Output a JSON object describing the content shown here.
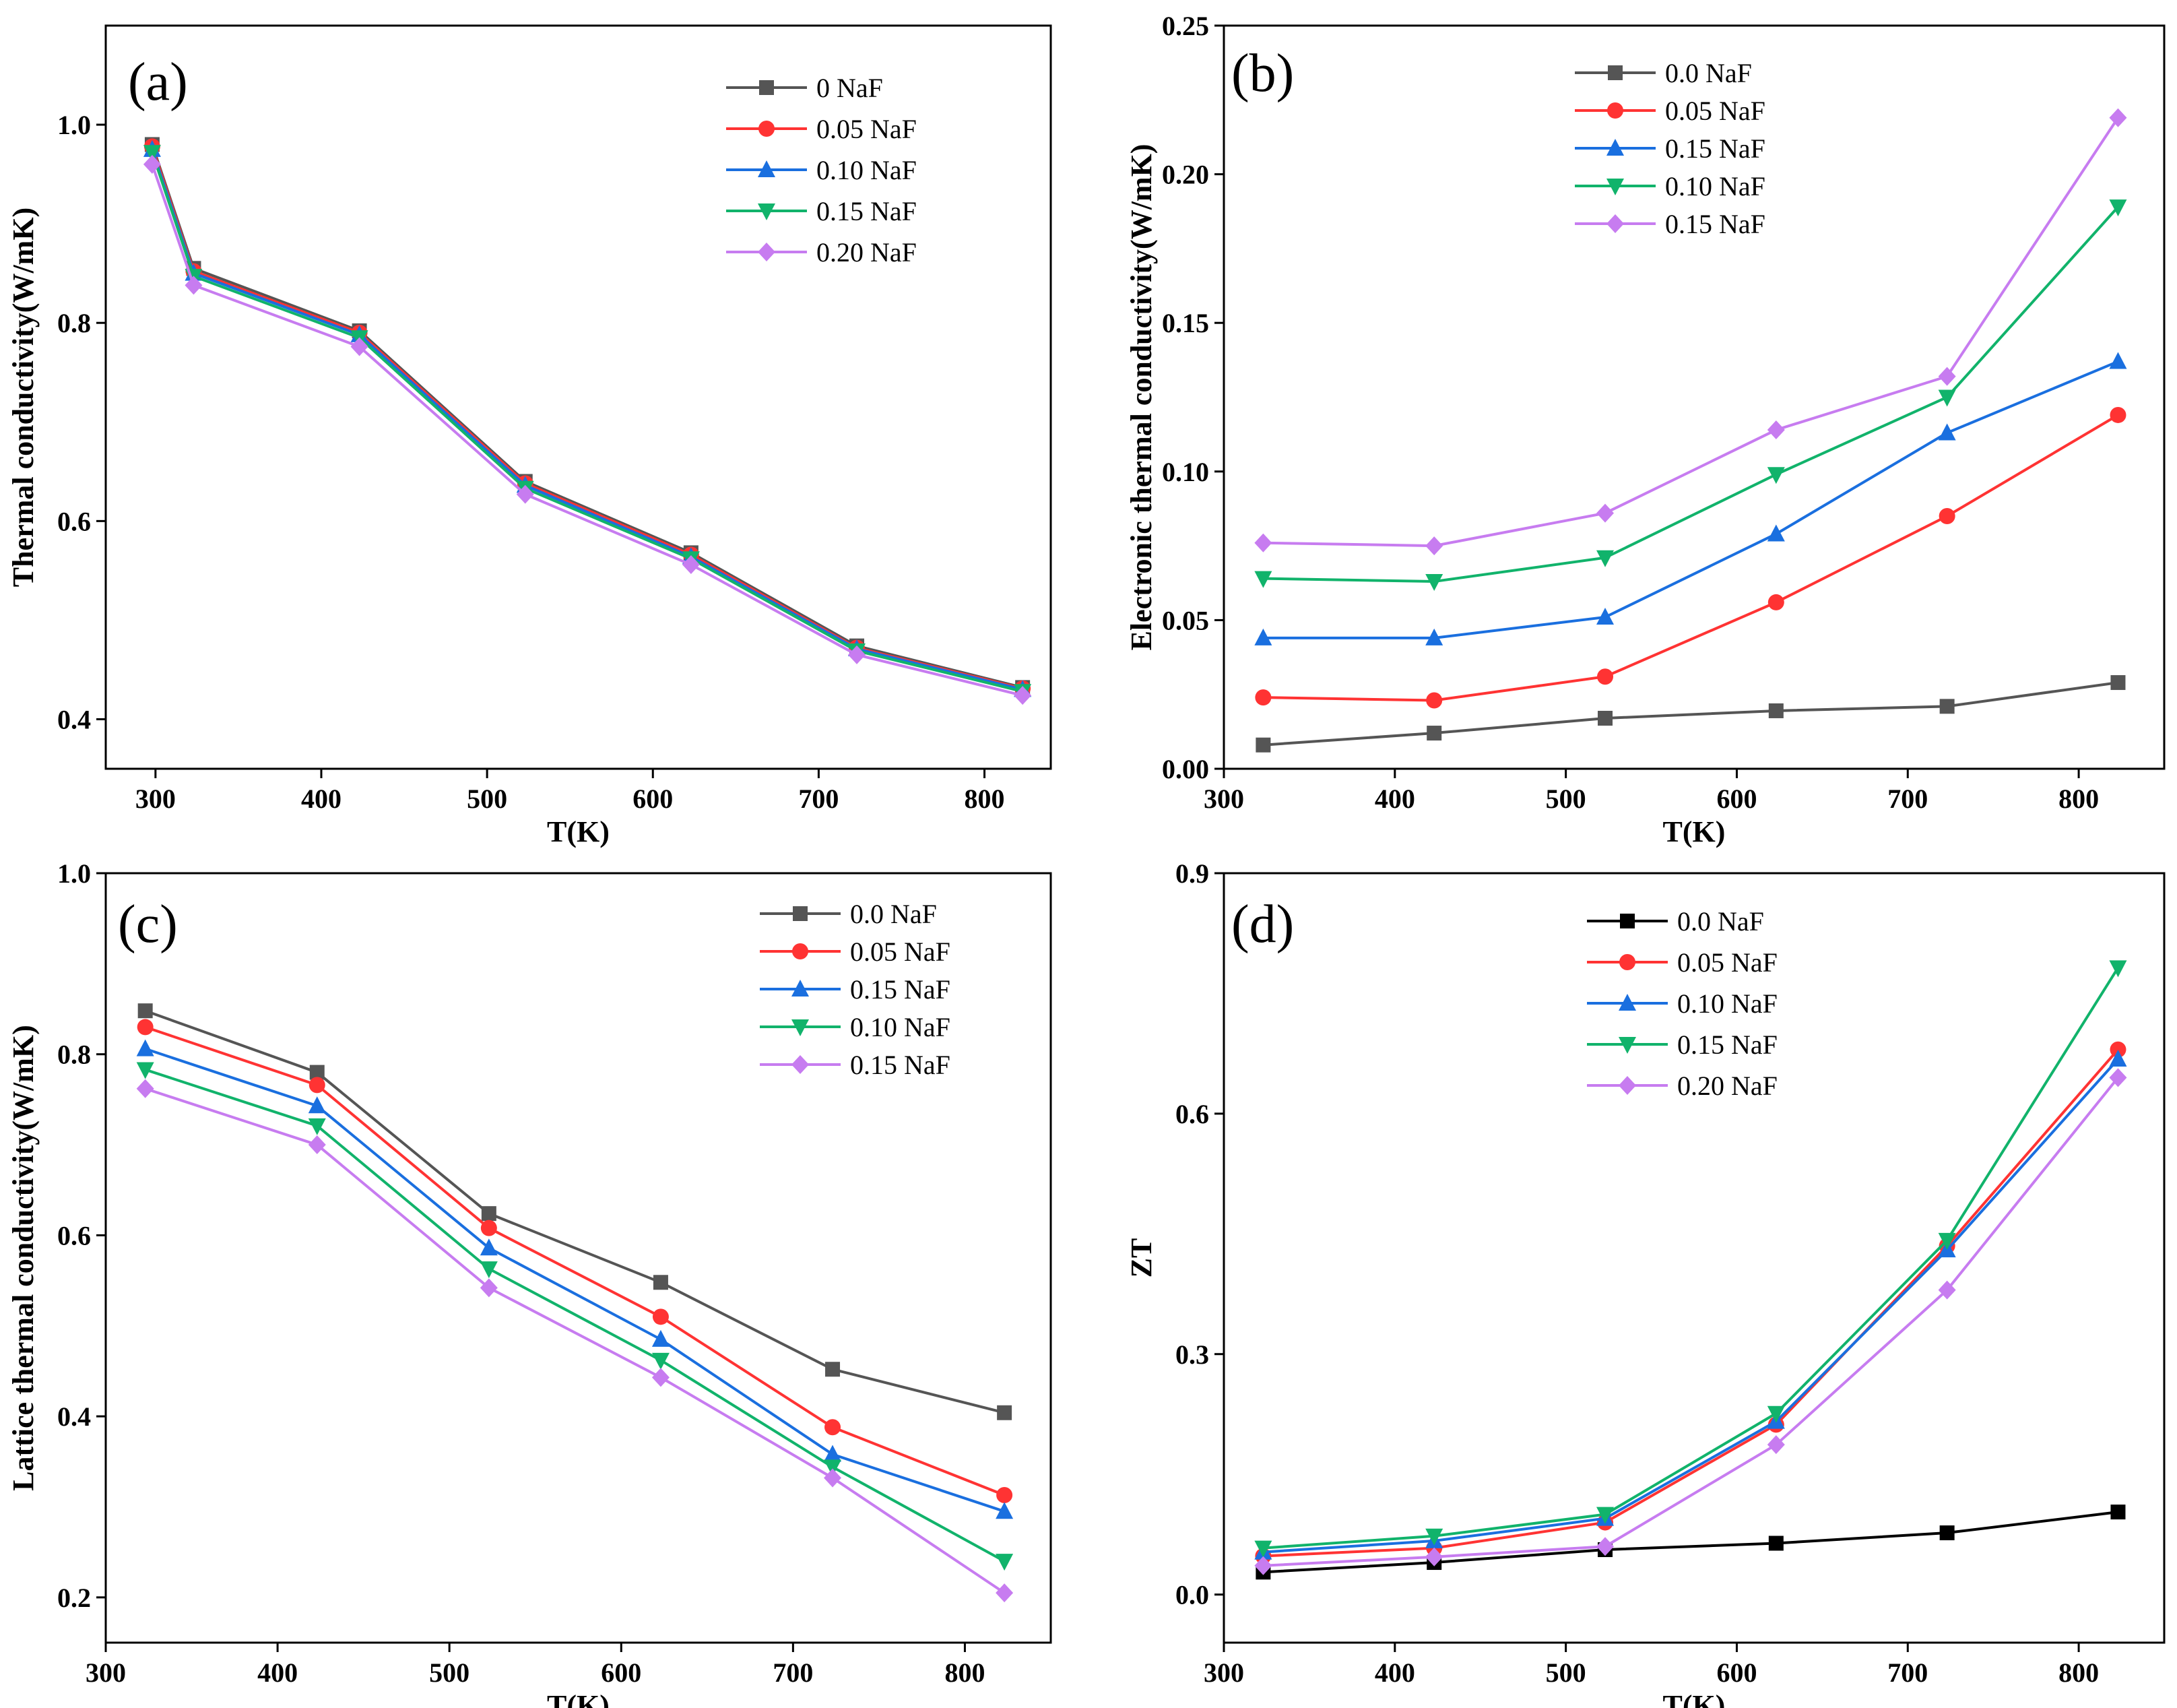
{
  "figure_title": "",
  "chart_data": [
    {
      "id": "a",
      "type": "line",
      "panel_label": "(a)",
      "xlabel": "T(K)",
      "ylabel": "Thermal conductivity(W/mK)",
      "xlim": [
        270,
        840
      ],
      "ylim": [
        0.35,
        1.1
      ],
      "xticks": [
        300,
        400,
        500,
        600,
        700,
        800
      ],
      "xtick_labels": [
        "300",
        "400",
        "500",
        "600",
        "700",
        "800"
      ],
      "yticks": [
        0.4,
        0.6,
        0.8,
        1.0
      ],
      "ytick_labels": [
        "0.4",
        "0.6",
        "0.8",
        "1.0"
      ],
      "legend_position": "top-right",
      "series": [
        {
          "name": "0 NaF",
          "color": "#555555",
          "marker": "square",
          "x": [
            298,
            323,
            423,
            523,
            623,
            723,
            823
          ],
          "y": [
            0.98,
            0.855,
            0.792,
            0.64,
            0.568,
            0.474,
            0.432
          ]
        },
        {
          "name": "0.05 NaF",
          "color": "#ff3333",
          "marker": "circle",
          "x": [
            298,
            323,
            423,
            523,
            623,
            723,
            823
          ],
          "y": [
            0.978,
            0.852,
            0.79,
            0.638,
            0.566,
            0.472,
            0.431
          ]
        },
        {
          "name": "0.10 NaF",
          "color": "#1a6fdf",
          "marker": "triangle-up",
          "x": [
            298,
            323,
            423,
            523,
            623,
            723,
            823
          ],
          "y": [
            0.975,
            0.85,
            0.788,
            0.636,
            0.564,
            0.471,
            0.43
          ]
        },
        {
          "name": "0.15 NaF",
          "color": "#11b36b",
          "marker": "triangle-down",
          "x": [
            298,
            323,
            423,
            523,
            623,
            723,
            823
          ],
          "y": [
            0.972,
            0.847,
            0.785,
            0.633,
            0.562,
            0.469,
            0.428
          ]
        },
        {
          "name": "0.20 NaF",
          "color": "#c77cf0",
          "marker": "diamond",
          "x": [
            298,
            323,
            423,
            523,
            623,
            723,
            823
          ],
          "y": [
            0.96,
            0.838,
            0.776,
            0.627,
            0.556,
            0.465,
            0.424
          ]
        }
      ]
    },
    {
      "id": "b",
      "type": "line",
      "panel_label": "(b)",
      "xlabel": "T(K)",
      "ylabel": "Electronic thermal conductivity(W/mK)",
      "xlim": [
        300,
        850
      ],
      "ylim": [
        0,
        0.25
      ],
      "xticks": [
        300,
        400,
        500,
        600,
        700,
        800
      ],
      "xtick_labels": [
        "300",
        "400",
        "500",
        "600",
        "700",
        "800"
      ],
      "yticks": [
        0,
        0.05,
        0.1,
        0.15,
        0.2,
        0.25
      ],
      "ytick_labels": [
        "0.00",
        "0.05",
        "0.10",
        "0.15",
        "0.20",
        "0.25"
      ],
      "legend_position": "top-center",
      "series": [
        {
          "name": "0.0 NaF",
          "color": "#555555",
          "marker": "square",
          "x": [
            323,
            423,
            523,
            623,
            723,
            823
          ],
          "y": [
            0.008,
            0.012,
            0.017,
            0.0195,
            0.021,
            0.029
          ]
        },
        {
          "name": "0.05 NaF",
          "color": "#ff3333",
          "marker": "circle",
          "x": [
            323,
            423,
            523,
            623,
            723,
            823
          ],
          "y": [
            0.024,
            0.023,
            0.031,
            0.056,
            0.085,
            0.119
          ]
        },
        {
          "name": "0.15 NaF",
          "color": "#1a6fdf",
          "marker": "triangle-up",
          "x": [
            323,
            423,
            523,
            623,
            723,
            823
          ],
          "y": [
            0.044,
            0.044,
            0.051,
            0.079,
            0.113,
            0.137
          ]
        },
        {
          "name": "0.10 NaF",
          "color": "#11b36b",
          "marker": "triangle-down",
          "x": [
            323,
            423,
            523,
            623,
            723,
            823
          ],
          "y": [
            0.064,
            0.063,
            0.071,
            0.099,
            0.125,
            0.189
          ]
        },
        {
          "name": "0.15 NaF",
          "color": "#c77cf0",
          "marker": "diamond",
          "x": [
            323,
            423,
            523,
            623,
            723,
            823
          ],
          "y": [
            0.076,
            0.075,
            0.086,
            0.114,
            0.132,
            0.219
          ]
        }
      ]
    },
    {
      "id": "c",
      "type": "line",
      "panel_label": "(c)",
      "xlabel": "T(K)",
      "ylabel": "Lattice thermal conductivity(W/mK)",
      "xlim": [
        300,
        850
      ],
      "ylim": [
        0.15,
        1.0
      ],
      "xticks": [
        300,
        400,
        500,
        600,
        700,
        800
      ],
      "xtick_labels": [
        "300",
        "400",
        "500",
        "600",
        "700",
        "800"
      ],
      "yticks": [
        0.2,
        0.4,
        0.6,
        0.8,
        1.0
      ],
      "ytick_labels": [
        "0.2",
        "0.4",
        "0.6",
        "0.8",
        "1.0"
      ],
      "legend_position": "top-right",
      "series": [
        {
          "name": "0.0 NaF",
          "color": "#555555",
          "marker": "square",
          "x": [
            323,
            423,
            523,
            623,
            723,
            823
          ],
          "y": [
            0.848,
            0.78,
            0.624,
            0.548,
            0.452,
            0.404
          ]
        },
        {
          "name": "0.05 NaF",
          "color": "#ff3333",
          "marker": "circle",
          "x": [
            323,
            423,
            523,
            623,
            723,
            823
          ],
          "y": [
            0.83,
            0.766,
            0.608,
            0.51,
            0.388,
            0.313
          ]
        },
        {
          "name": "0.15 NaF",
          "color": "#1a6fdf",
          "marker": "triangle-up",
          "x": [
            323,
            423,
            523,
            623,
            723,
            823
          ],
          "y": [
            0.806,
            0.743,
            0.586,
            0.485,
            0.358,
            0.295
          ]
        },
        {
          "name": "0.10 NaF",
          "color": "#11b36b",
          "marker": "triangle-down",
          "x": [
            323,
            423,
            523,
            623,
            723,
            823
          ],
          "y": [
            0.783,
            0.721,
            0.563,
            0.462,
            0.344,
            0.24
          ]
        },
        {
          "name": "0.15 NaF",
          "color": "#c77cf0",
          "marker": "diamond",
          "x": [
            323,
            423,
            523,
            623,
            723,
            823
          ],
          "y": [
            0.762,
            0.7,
            0.542,
            0.443,
            0.332,
            0.205
          ]
        }
      ]
    },
    {
      "id": "d",
      "type": "line",
      "panel_label": "(d)",
      "xlabel": "T(K)",
      "ylabel": "ZT",
      "xlim": [
        300,
        850
      ],
      "ylim": [
        -0.06,
        0.9
      ],
      "xticks": [
        300,
        400,
        500,
        600,
        700,
        800
      ],
      "xtick_labels": [
        "300",
        "400",
        "500",
        "600",
        "700",
        "800"
      ],
      "yticks": [
        0,
        0.3,
        0.6,
        0.9
      ],
      "ytick_labels": [
        "0.0",
        "0.3",
        "0.6",
        "0.9"
      ],
      "legend_position": "top-center",
      "series": [
        {
          "name": "0.0 NaF",
          "color": "#000000",
          "marker": "square",
          "x": [
            323,
            423,
            523,
            623,
            723,
            823
          ],
          "y": [
            0.028,
            0.04,
            0.056,
            0.064,
            0.077,
            0.103
          ]
        },
        {
          "name": "0.05 NaF",
          "color": "#ff3333",
          "marker": "circle",
          "x": [
            323,
            423,
            523,
            623,
            723,
            823
          ],
          "y": [
            0.048,
            0.058,
            0.09,
            0.212,
            0.435,
            0.68
          ]
        },
        {
          "name": "0.10 NaF",
          "color": "#1a6fdf",
          "marker": "triangle-up",
          "x": [
            323,
            423,
            523,
            623,
            723,
            823
          ],
          "y": [
            0.053,
            0.067,
            0.095,
            0.216,
            0.43,
            0.668
          ]
        },
        {
          "name": "0.15 NaF",
          "color": "#11b36b",
          "marker": "triangle-down",
          "x": [
            323,
            423,
            523,
            623,
            723,
            823
          ],
          "y": [
            0.058,
            0.073,
            0.1,
            0.226,
            0.442,
            0.782
          ]
        },
        {
          "name": "0.20 NaF",
          "color": "#c77cf0",
          "marker": "diamond",
          "x": [
            323,
            423,
            523,
            623,
            723,
            823
          ],
          "y": [
            0.036,
            0.047,
            0.06,
            0.187,
            0.38,
            0.645
          ]
        }
      ]
    }
  ]
}
